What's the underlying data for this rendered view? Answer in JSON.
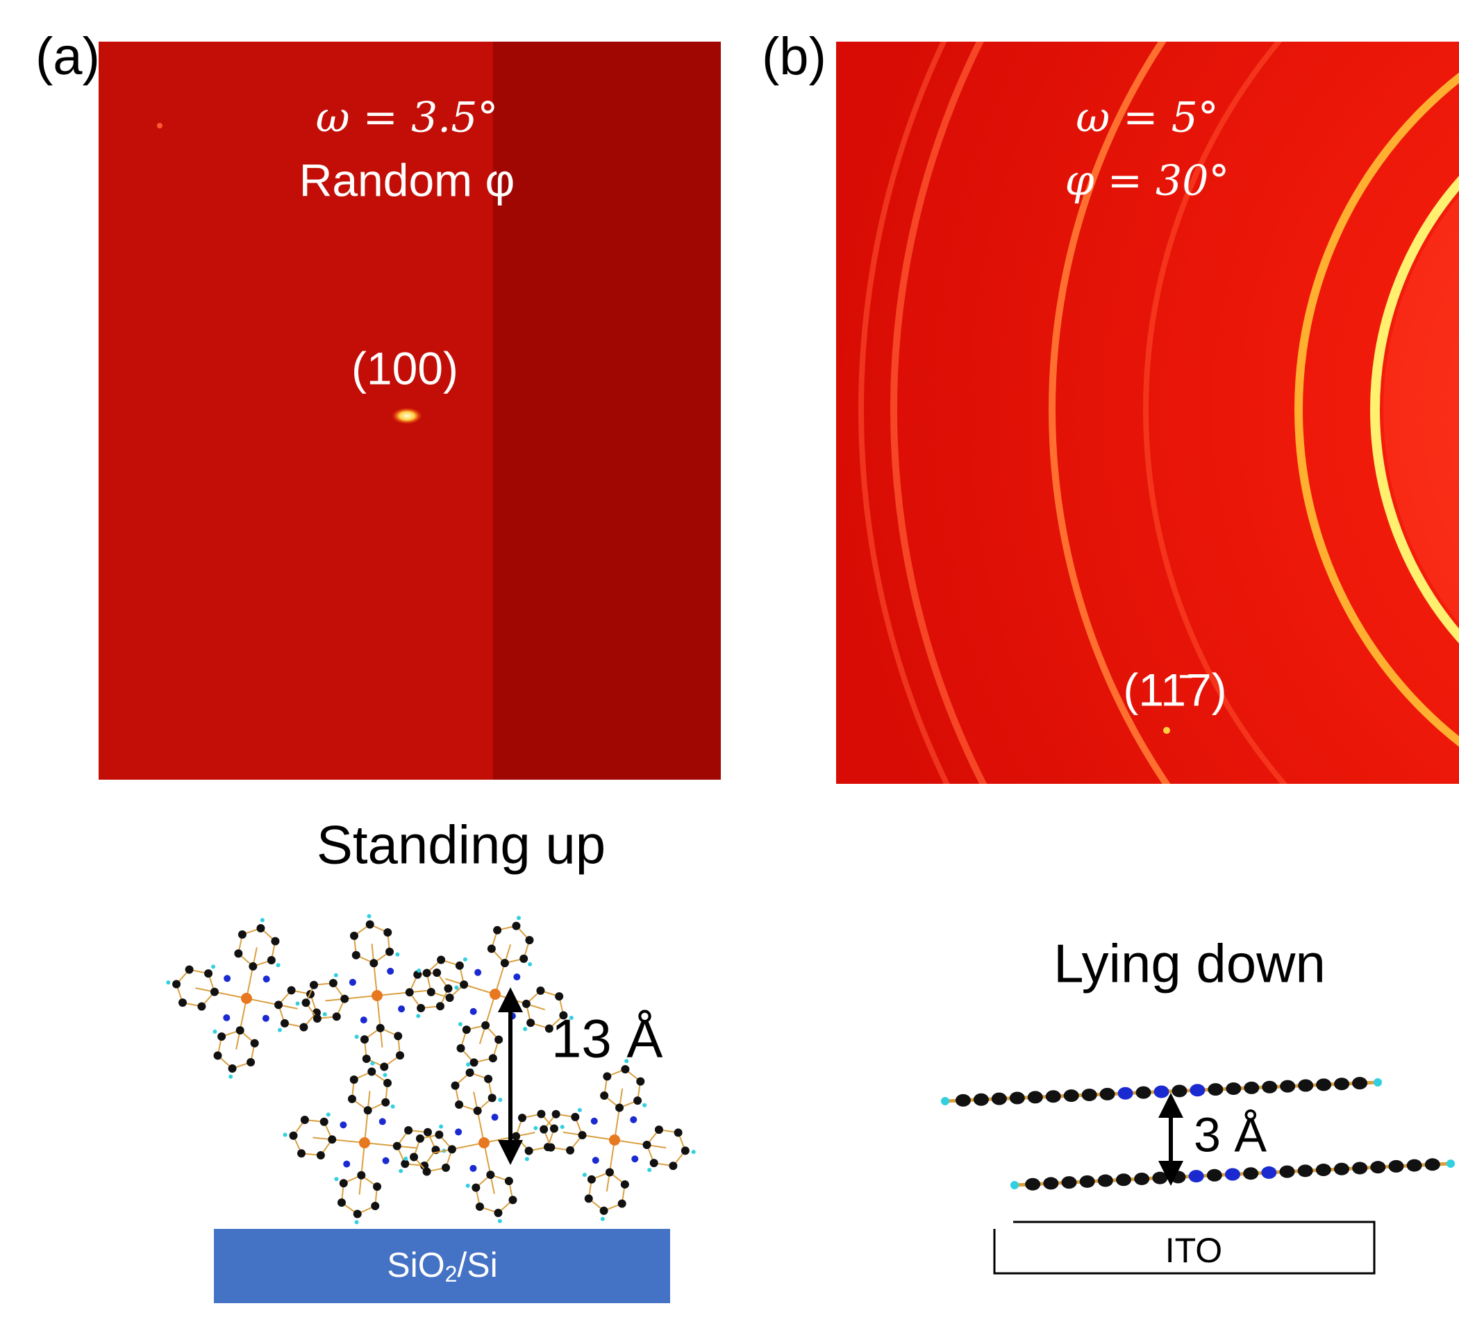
{
  "panel_a": {
    "label": "(a)",
    "omega": "ω = 3.5°",
    "phi": "Random φ",
    "peak": "(100)",
    "orientation": "Standing up",
    "spacing": "13 Å",
    "substrate": {
      "base": "SiO",
      "subscript": "2",
      "suffix": "/Si"
    }
  },
  "panel_b": {
    "label": "(b)",
    "omega": "ω = 5°",
    "phi": "φ = 30°",
    "peak": "(11̄7)",
    "orientation": "Lying down",
    "spacing": "3 Å",
    "substrate": "ITO"
  }
}
